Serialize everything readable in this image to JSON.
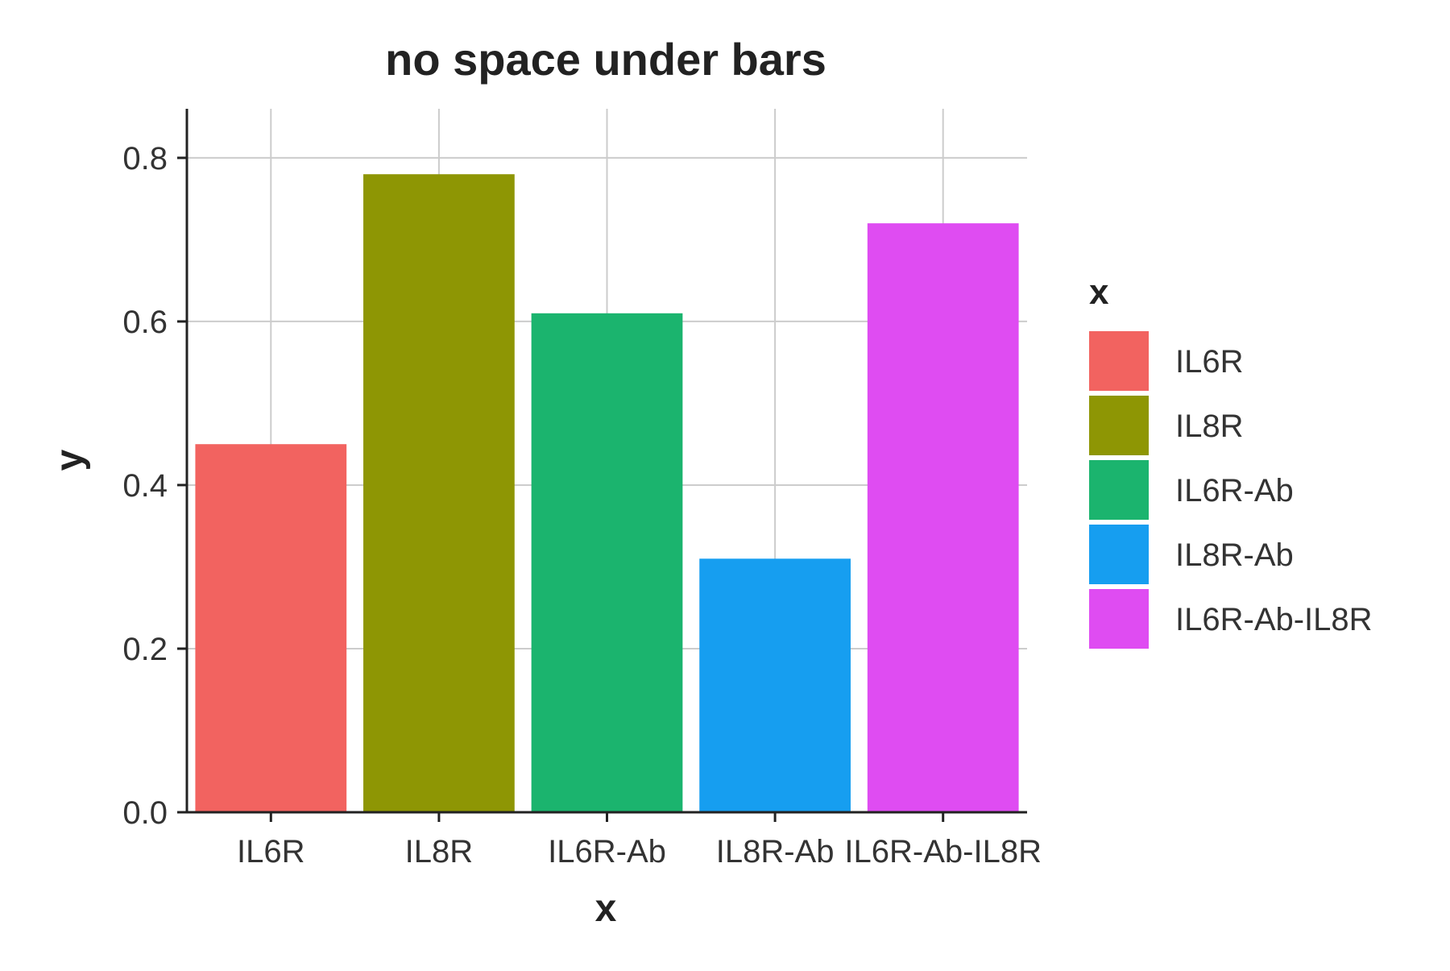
{
  "chart_data": {
    "type": "bar",
    "title": "no space under bars",
    "xlabel": "x",
    "ylabel": "y",
    "categories": [
      "IL6R",
      "IL8R",
      "IL6R-Ab",
      "IL8R-Ab",
      "IL6R-Ab-IL8R"
    ],
    "values": [
      0.45,
      0.78,
      0.61,
      0.31,
      0.72
    ],
    "colors": [
      "#F26360",
      "#8E9604",
      "#1BB46E",
      "#169EF0",
      "#DF4CF2"
    ],
    "ylim": [
      0,
      0.86
    ],
    "yticks": [
      0.0,
      0.2,
      0.4,
      0.6,
      0.8
    ],
    "ytick_labels": [
      "0.0",
      "0.2",
      "0.4",
      "0.6",
      "0.8"
    ],
    "grid": true,
    "legend": {
      "title": "x",
      "placement": "right",
      "entries": [
        "IL6R",
        "IL8R",
        "IL6R-Ab",
        "IL8R-Ab",
        "IL6R-Ab-IL8R"
      ]
    }
  }
}
